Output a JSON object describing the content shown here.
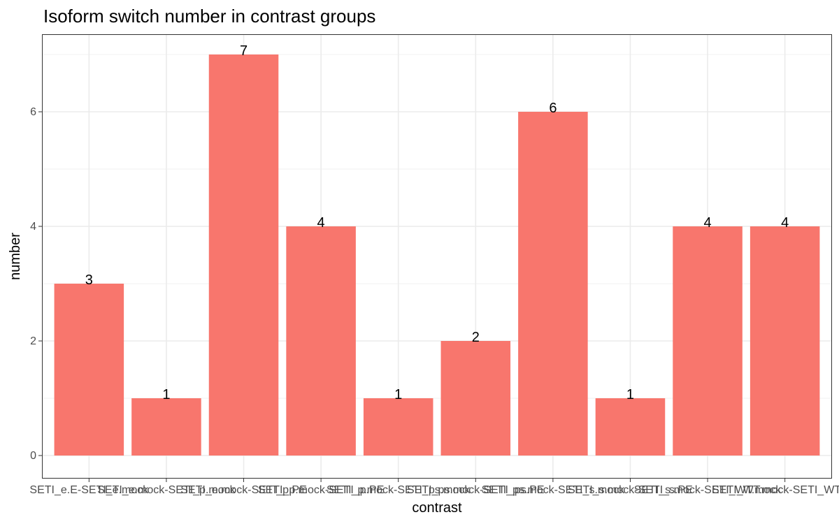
{
  "chart_data": {
    "type": "bar",
    "title": "Isoform switch number in contrast groups",
    "xlabel": "contrast",
    "ylabel": "number",
    "categories": [
      "SETI_e.E-SETI_e.mock",
      "SETI_e.mock-SETI_p.mock",
      "SETI_e.mock-SETI_p.PE",
      "SETI_p.mock-SETI_p.PE",
      "SETI_p.mock-SETI_ps.mock",
      "SETI_ps.mock-SETI_ps.PE",
      "SETI_ps.mock-SETI_s.mock",
      "SETI_s.mock-SETI_s.PE",
      "SETI_s.mock-SETI_WT.mock",
      "SETI_WT.mock-SETI_WT.PE"
    ],
    "values": [
      3,
      1,
      7,
      4,
      1,
      2,
      6,
      1,
      4,
      4
    ],
    "ylim": [
      0,
      7.35
    ],
    "yticks": [
      0,
      2,
      4,
      6
    ],
    "grid": true,
    "legend": "none",
    "bar_color": "#F8766D"
  }
}
